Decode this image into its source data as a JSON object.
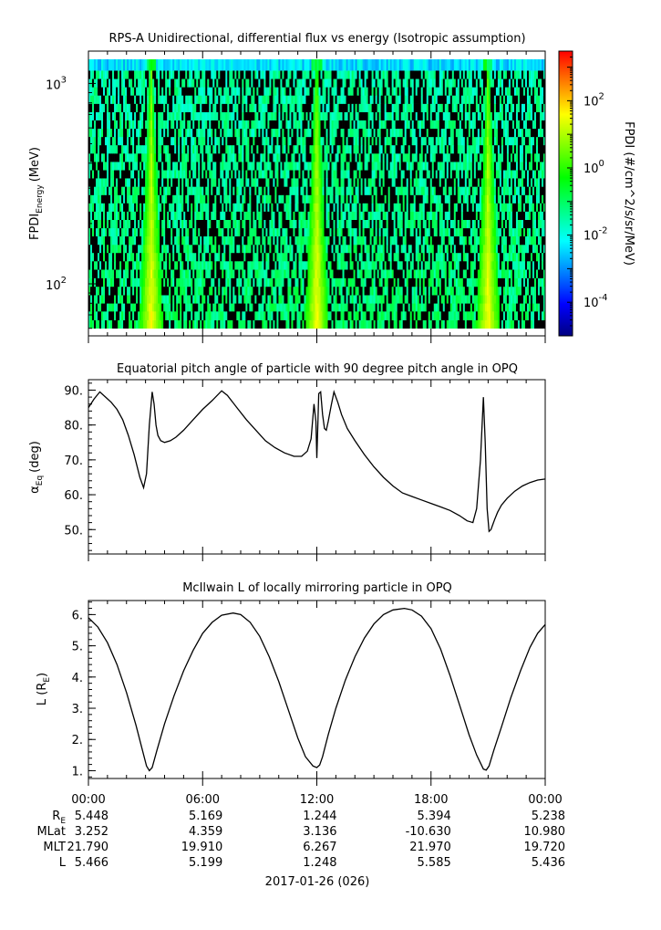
{
  "chart_data": [
    {
      "type": "heatmap",
      "title": "RPS-A Unidirectional, differential flux vs energy (Isotropic assumption)",
      "ylabel_main": "FPDI",
      "ylabel_sub": "Energy",
      "ylabel_unit": "(MeV)",
      "y_scale": "log",
      "ylim": [
        55,
        1450
      ],
      "y_ticks": [
        {
          "value": 100,
          "base": "10",
          "exp": "2"
        },
        {
          "value": 1000,
          "base": "10",
          "exp": "3"
        }
      ],
      "energy_bin_edges": [
        60,
        66,
        73,
        80,
        88,
        97,
        107,
        118,
        130,
        143,
        157,
        173,
        190,
        209,
        230,
        253,
        278,
        306,
        337,
        370,
        407,
        448,
        493,
        542,
        596,
        656,
        721,
        793,
        873,
        960,
        1056,
        1162,
        1320
      ],
      "xlim_hours": [
        0,
        24
      ],
      "bright_bands_hours": [
        3.3,
        12.0,
        21.0
      ],
      "colorbar": {
        "label": "FPDI (#/cm^2/s/sr/MeV)",
        "scale": "log",
        "range": [
          1e-05,
          3000
        ],
        "ticks": [
          {
            "value": 0.0001,
            "base": "10",
            "exp": "-4"
          },
          {
            "value": 0.01,
            "base": "10",
            "exp": "-2"
          },
          {
            "value": 1,
            "base": "10",
            "exp": "0"
          },
          {
            "value": 100,
            "base": "10",
            "exp": "2"
          }
        ],
        "colors": [
          "#000080",
          "#0000ff",
          "#0080ff",
          "#00ffff",
          "#00ff80",
          "#00ff00",
          "#80ff00",
          "#ffff00",
          "#ff8000",
          "#ff0000"
        ]
      }
    },
    {
      "type": "line",
      "title": "Equatorial pitch angle of particle with 90 degree pitch angle in OPQ",
      "ylabel": "α",
      "ylabel_sub": "Eq",
      "ylabel_unit": "(deg)",
      "ylim": [
        43,
        93
      ],
      "y_ticks": [
        "50.",
        "60.",
        "70.",
        "80.",
        "90."
      ],
      "x": [
        0,
        0.3,
        0.6,
        0.9,
        1.2,
        1.5,
        1.8,
        2.1,
        2.4,
        2.7,
        2.9,
        3.05,
        3.2,
        3.35,
        3.45,
        3.55,
        3.65,
        3.8,
        4.0,
        4.3,
        4.6,
        5.0,
        5.5,
        6.0,
        6.5,
        7.0,
        7.3,
        7.8,
        8.3,
        8.8,
        9.3,
        9.8,
        10.3,
        10.8,
        11.2,
        11.5,
        11.7,
        11.85,
        11.95,
        12.0,
        12.05,
        12.1,
        12.2,
        12.3,
        12.4,
        12.5,
        12.6,
        12.75,
        12.9,
        13.1,
        13.3,
        13.6,
        14.0,
        14.5,
        15.0,
        15.5,
        16.0,
        16.5,
        17.0,
        17.5,
        18.0,
        18.5,
        19.0,
        19.5,
        19.9,
        20.2,
        20.4,
        20.6,
        20.75,
        20.85,
        20.95,
        21.05,
        21.15,
        21.25,
        21.35,
        21.5,
        21.7,
        22.0,
        22.4,
        22.8,
        23.2,
        23.6,
        24.0
      ],
      "y": [
        85,
        87.5,
        89.5,
        88,
        86.5,
        84.5,
        81.5,
        77,
        71.5,
        65,
        62,
        66,
        80,
        89.5,
        86,
        80,
        77,
        75.5,
        75,
        75.5,
        76.5,
        78.5,
        81.5,
        84.5,
        87,
        89.8,
        88.5,
        85,
        81.5,
        78.5,
        75.5,
        73.5,
        72,
        71,
        71,
        72.5,
        76,
        86,
        81,
        70.5,
        79,
        89,
        89.5,
        83,
        79,
        78.5,
        81,
        85.5,
        89.5,
        86.5,
        83,
        79,
        75.5,
        71.5,
        68,
        65,
        62.5,
        60.5,
        59.5,
        58.5,
        57.5,
        56.5,
        55.5,
        54,
        52.5,
        52,
        56,
        70,
        88,
        75,
        56,
        49.5,
        50,
        51.5,
        53,
        55,
        57,
        59,
        61,
        62.5,
        63.5,
        64.2,
        64.5
      ]
    },
    {
      "type": "line",
      "title": "McIlwain L of locally mirroring particle in OPQ",
      "ylabel": "L (R",
      "ylabel_sub": "E",
      "ylabel_unit": ")",
      "ylim": [
        0.75,
        6.45
      ],
      "y_ticks": [
        "1.",
        "2.",
        "3.",
        "4.",
        "5.",
        "6."
      ],
      "x": [
        0,
        0.5,
        1.0,
        1.5,
        2.0,
        2.5,
        2.8,
        3.05,
        3.2,
        3.35,
        3.6,
        4.0,
        4.5,
        5.0,
        5.5,
        6.0,
        6.5,
        7.0,
        7.6,
        8.0,
        8.5,
        9.0,
        9.5,
        10.0,
        10.5,
        11.0,
        11.4,
        11.8,
        12.0,
        12.15,
        12.3,
        12.6,
        13.0,
        13.5,
        14.0,
        14.5,
        15.0,
        15.5,
        16.0,
        16.6,
        17.0,
        17.5,
        18.0,
        18.5,
        19.0,
        19.5,
        20.0,
        20.4,
        20.75,
        20.9,
        21.05,
        21.3,
        21.7,
        22.2,
        22.7,
        23.2,
        23.6,
        24.0
      ],
      "y": [
        5.9,
        5.6,
        5.1,
        4.4,
        3.5,
        2.45,
        1.75,
        1.15,
        1.0,
        1.1,
        1.65,
        2.5,
        3.4,
        4.2,
        4.85,
        5.4,
        5.75,
        5.98,
        6.05,
        6.0,
        5.75,
        5.3,
        4.65,
        3.85,
        2.95,
        2.05,
        1.45,
        1.15,
        1.1,
        1.18,
        1.45,
        2.15,
        3.0,
        3.9,
        4.65,
        5.25,
        5.7,
        6.0,
        6.15,
        6.2,
        6.15,
        5.95,
        5.55,
        4.9,
        4.05,
        3.1,
        2.15,
        1.5,
        1.05,
        1.02,
        1.15,
        1.65,
        2.4,
        3.35,
        4.2,
        4.95,
        5.4,
        5.68
      ]
    }
  ],
  "x_axis": {
    "tick_labels": [
      "00:00",
      "06:00",
      "12:00",
      "18:00",
      "00:00"
    ],
    "tick_hours": [
      0,
      6,
      12,
      18,
      24
    ],
    "ephemeris_rows": [
      {
        "label": "R",
        "label_sub": "E",
        "values": [
          "5.448",
          "5.169",
          "1.244",
          "5.394",
          "5.238"
        ]
      },
      {
        "label": "MLat",
        "label_sub": "",
        "values": [
          "3.252",
          "4.359",
          "3.136",
          "-10.630",
          "10.980"
        ]
      },
      {
        "label": "MLT",
        "label_sub": "",
        "values": [
          "21.790",
          "19.910",
          "6.267",
          "21.970",
          "19.720"
        ]
      },
      {
        "label": "L",
        "label_sub": "",
        "values": [
          "5.466",
          "5.199",
          "1.248",
          "5.585",
          "5.436"
        ]
      }
    ],
    "date_label": "2017-01-26 (026)"
  }
}
